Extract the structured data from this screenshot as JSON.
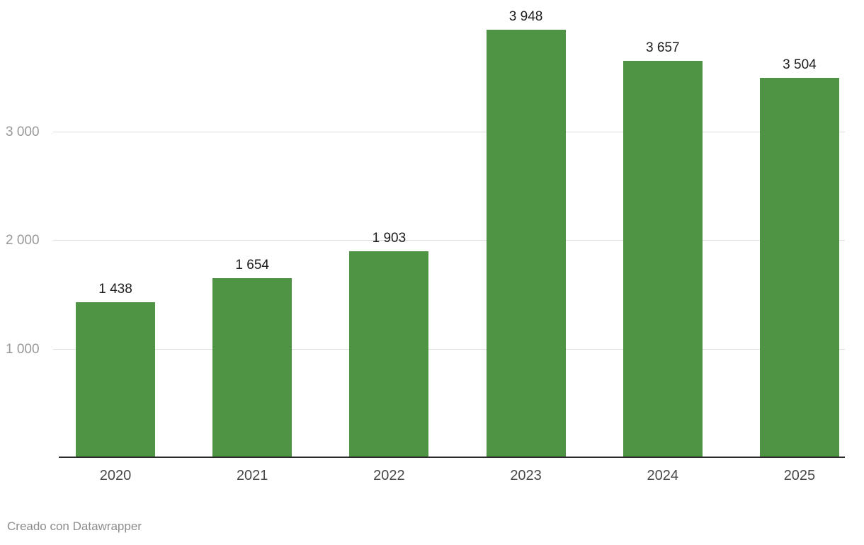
{
  "chart_data": {
    "type": "bar",
    "categories": [
      "2020",
      "2021",
      "2022",
      "2023",
      "2024",
      "2025"
    ],
    "values": [
      1438,
      1654,
      1903,
      3948,
      3657,
      3504
    ],
    "value_labels": [
      "1 438",
      "1 654",
      "1 903",
      "3 948",
      "3 657",
      "3 504"
    ],
    "yticks": [
      {
        "value": 1000,
        "label": "1 000"
      },
      {
        "value": 2000,
        "label": "2 000"
      },
      {
        "value": 3000,
        "label": "3 000"
      }
    ],
    "ylim": [
      0,
      4220
    ],
    "grid": true,
    "legend": "none",
    "title": "",
    "xlabel": "",
    "ylabel": ""
  },
  "footer": {
    "credit": "Creado con Datawrapper"
  },
  "colors": {
    "bar": "#4e9444",
    "gridline": "#dddddd",
    "axis": "#2b2b2b",
    "value_label": "#1d1d1d",
    "tick_label": "#989898",
    "x_label": "#494949",
    "footer_text": "#8c8c8c",
    "background": "#ffffff"
  }
}
